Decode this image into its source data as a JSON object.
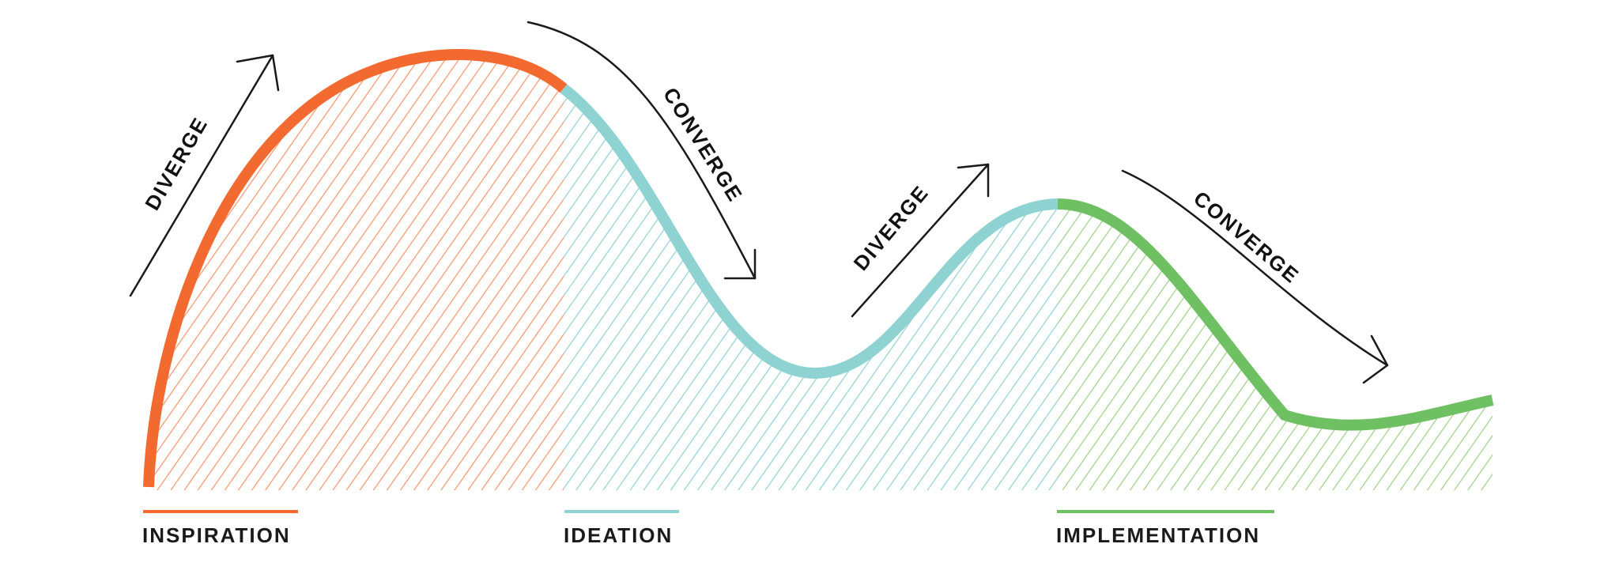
{
  "diagram": {
    "phases": [
      {
        "id": "inspiration",
        "label": "INSPIRATION",
        "color": "#f26a30",
        "hatch_color": "#f5936a"
      },
      {
        "id": "ideation",
        "label": "IDEATION",
        "color": "#8ed2d1",
        "hatch_color": "#8fd0d2"
      },
      {
        "id": "implementation",
        "label": "IMPLEMENTATION",
        "color": "#6fbf63",
        "hatch_color": "#9dcf82"
      }
    ],
    "arrows": [
      {
        "id": "diverge-1",
        "label": "DIVERGE"
      },
      {
        "id": "converge-1",
        "label": "CONVERGE"
      },
      {
        "id": "diverge-2",
        "label": "DIVERGE"
      },
      {
        "id": "converge-2",
        "label": "CONVERGE"
      }
    ],
    "colors": {
      "ink": "#1a1a1a",
      "background": "#ffffff"
    }
  }
}
